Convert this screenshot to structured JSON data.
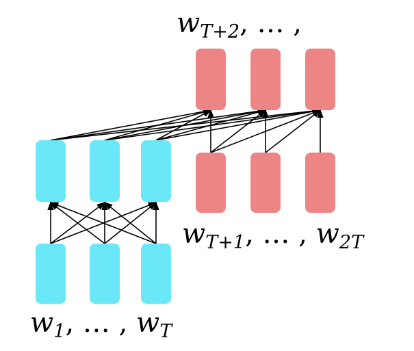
{
  "colors": {
    "input_nodes": "#6ae8f7",
    "output_nodes": "#ee8585",
    "edges": "#000000"
  },
  "labels": {
    "bottom_left": {
      "w1_base": "w",
      "w1_sub": "1",
      "mid": ", … , ",
      "wT_base": "w",
      "wT_sub": "T"
    },
    "bottom_right": {
      "w_base": "w",
      "w_sub": "T+1",
      "mid": ", … , ",
      "w2T_base": "w",
      "w2T_sub": "2T"
    },
    "top": {
      "w_base": "w",
      "w_sub": "T+2",
      "tail": ", … ,"
    }
  }
}
